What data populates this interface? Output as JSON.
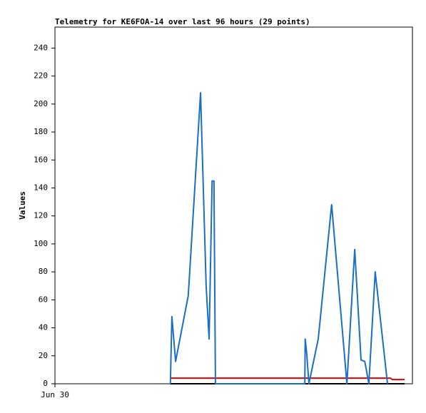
{
  "chart_data": {
    "type": "line",
    "title": "Telemetry for KE6FOA-14 over last 96 hours (29 points)",
    "y_label": "Values",
    "xlim": [
      0,
      96
    ],
    "xticks": [
      {
        "value": 0,
        "label": "Jun 30"
      }
    ],
    "ylim": [
      0,
      255
    ],
    "yticks": [
      0,
      20,
      40,
      60,
      80,
      100,
      120,
      140,
      160,
      180,
      200,
      220,
      240
    ],
    "grid": false,
    "series": [
      {
        "color": "#000000",
        "x": [
          31.0,
          93.9
        ],
        "values": [
          0,
          0
        ]
      },
      {
        "color": "#e00000",
        "x": [
          31.0,
          90.1,
          90.6,
          93.9
        ],
        "values": [
          4,
          4,
          3,
          3
        ]
      },
      {
        "color": "#1a6fc4",
        "x": [
          31.0,
          31.4,
          32.4,
          35.8,
          39.1,
          40.6,
          41.4,
          42.2,
          42.7,
          43.1,
          67.1,
          67.2,
          67.6,
          68.2,
          70.7,
          74.3,
          78.4,
          80.5,
          82.2,
          83.2,
          84.3,
          86.0,
          89.3
        ],
        "values": [
          0,
          48,
          16,
          63,
          208,
          70,
          32,
          145,
          145,
          0,
          0,
          32,
          22,
          0,
          32,
          128,
          0,
          96,
          17,
          16,
          0,
          80,
          0
        ]
      }
    ]
  }
}
